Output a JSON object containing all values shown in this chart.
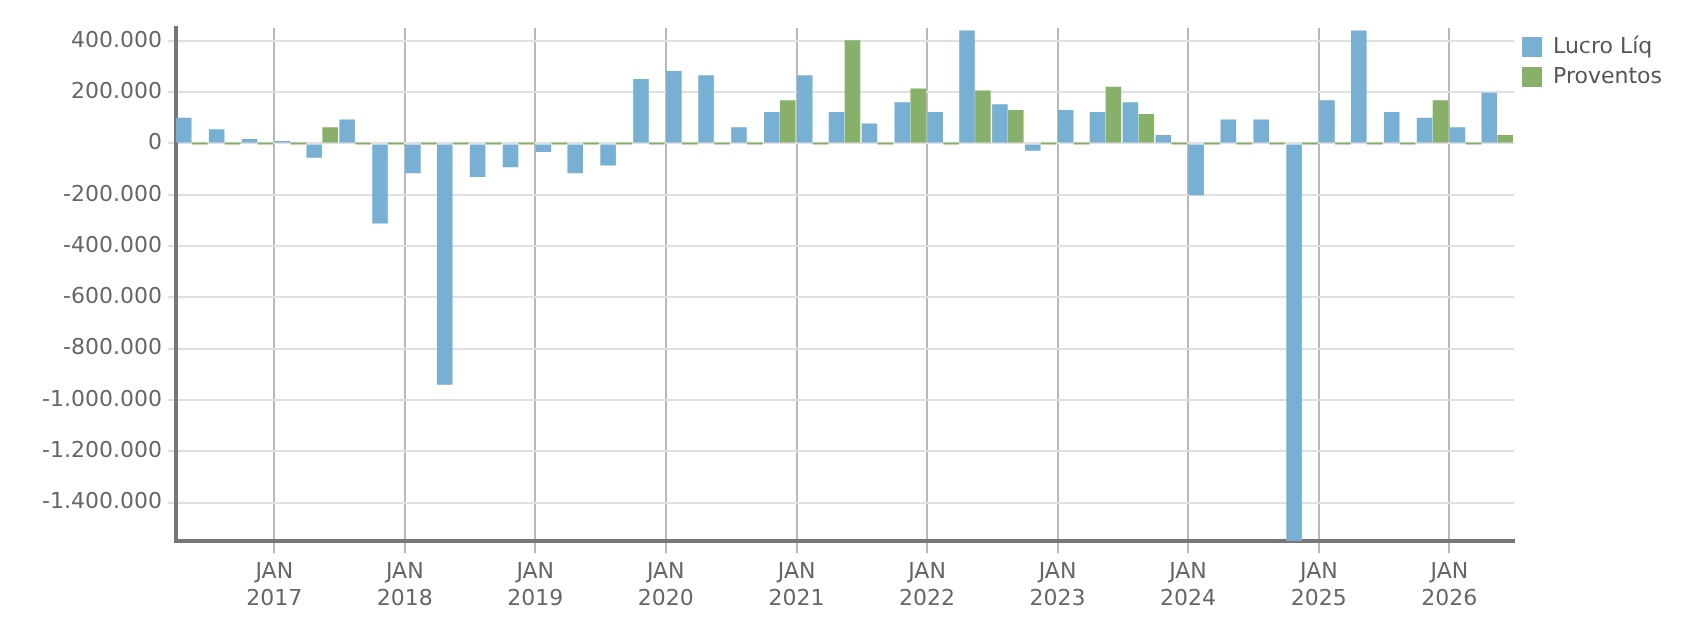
{
  "chart_data": {
    "type": "bar",
    "x": [
      "2016-05-15",
      "2016-08-15",
      "2016-11-15",
      "2017-02-15",
      "2017-05-15",
      "2017-08-15",
      "2017-11-15",
      "2018-02-15",
      "2018-05-15",
      "2018-08-15",
      "2018-11-15",
      "2019-02-15",
      "2019-05-15",
      "2019-08-15",
      "2019-11-15",
      "2020-02-15",
      "2020-05-15",
      "2020-08-15",
      "2020-11-15",
      "2021-02-15",
      "2021-05-15",
      "2021-08-15",
      "2021-11-15",
      "2022-02-15",
      "2022-05-15",
      "2022-08-15",
      "2022-11-15",
      "2023-02-15",
      "2023-05-15",
      "2023-08-15",
      "2023-11-15",
      "2024-02-15",
      "2024-05-15",
      "2024-08-15",
      "2024-11-15",
      "2025-02-15",
      "2025-05-15",
      "2025-08-15",
      "2025-11-15",
      "2026-02-15",
      "2026-05-15"
    ],
    "series": [
      {
        "name": "Lucro Líq",
        "color": "#77b0d3",
        "values": [
          100000,
          55000,
          17000,
          10000,
          -56000,
          93000,
          -312000,
          -116000,
          -940000,
          -131000,
          -93000,
          -33000,
          -116000,
          -86000,
          251000,
          282000,
          266000,
          63000,
          123000,
          266000,
          123000,
          78000,
          161000,
          123000,
          440000,
          153000,
          -28000,
          130000,
          123000,
          161000,
          33000,
          -202000,
          93000,
          93000,
          -1550000,
          168000,
          440000,
          123000,
          100000,
          63000,
          198000
        ]
      },
      {
        "name": "Proventos",
        "color": "#87b06b",
        "values": [
          0,
          0,
          0,
          0,
          63000,
          0,
          0,
          0,
          0,
          0,
          0,
          0,
          0,
          0,
          0,
          0,
          0,
          0,
          168000,
          0,
          402000,
          0,
          214000,
          0,
          206000,
          130000,
          0,
          0,
          221000,
          115000,
          0,
          0,
          0,
          0,
          0,
          0,
          0,
          0,
          168000,
          0,
          33000
        ]
      }
    ],
    "xlim": [
      "2016-04-01",
      "2026-07-01"
    ],
    "xticks": [
      {
        "value": "2017-01-01",
        "label": "JAN\n2017"
      },
      {
        "value": "2018-01-01",
        "label": "JAN\n2018"
      },
      {
        "value": "2019-01-01",
        "label": "JAN\n2019"
      },
      {
        "value": "2020-01-01",
        "label": "JAN\n2020"
      },
      {
        "value": "2021-01-01",
        "label": "JAN\n2021"
      },
      {
        "value": "2022-01-01",
        "label": "JAN\n2022"
      },
      {
        "value": "2023-01-01",
        "label": "JAN\n2023"
      },
      {
        "value": "2024-01-01",
        "label": "JAN\n2024"
      },
      {
        "value": "2025-01-01",
        "label": "JAN\n2025"
      },
      {
        "value": "2026-01-01",
        "label": "JAN\n2026"
      }
    ],
    "ylim": [
      -1550000,
      450000
    ],
    "yticks": [
      {
        "value": 400000,
        "label": "400.000"
      },
      {
        "value": 200000,
        "label": "200.000"
      },
      0,
      {
        "value": -200000,
        "label": "-200.000"
      },
      {
        "value": -400000,
        "label": "-400.000"
      },
      {
        "value": -600000,
        "label": "-600.000"
      },
      {
        "value": -800000,
        "label": "-800.000"
      },
      {
        "value": -1000000,
        "label": "-1.000.000"
      },
      {
        "value": -1200000,
        "label": "-1.200.000"
      },
      {
        "value": -1400000,
        "label": "-1.400.000"
      }
    ],
    "grid": true,
    "legend": "top right"
  }
}
